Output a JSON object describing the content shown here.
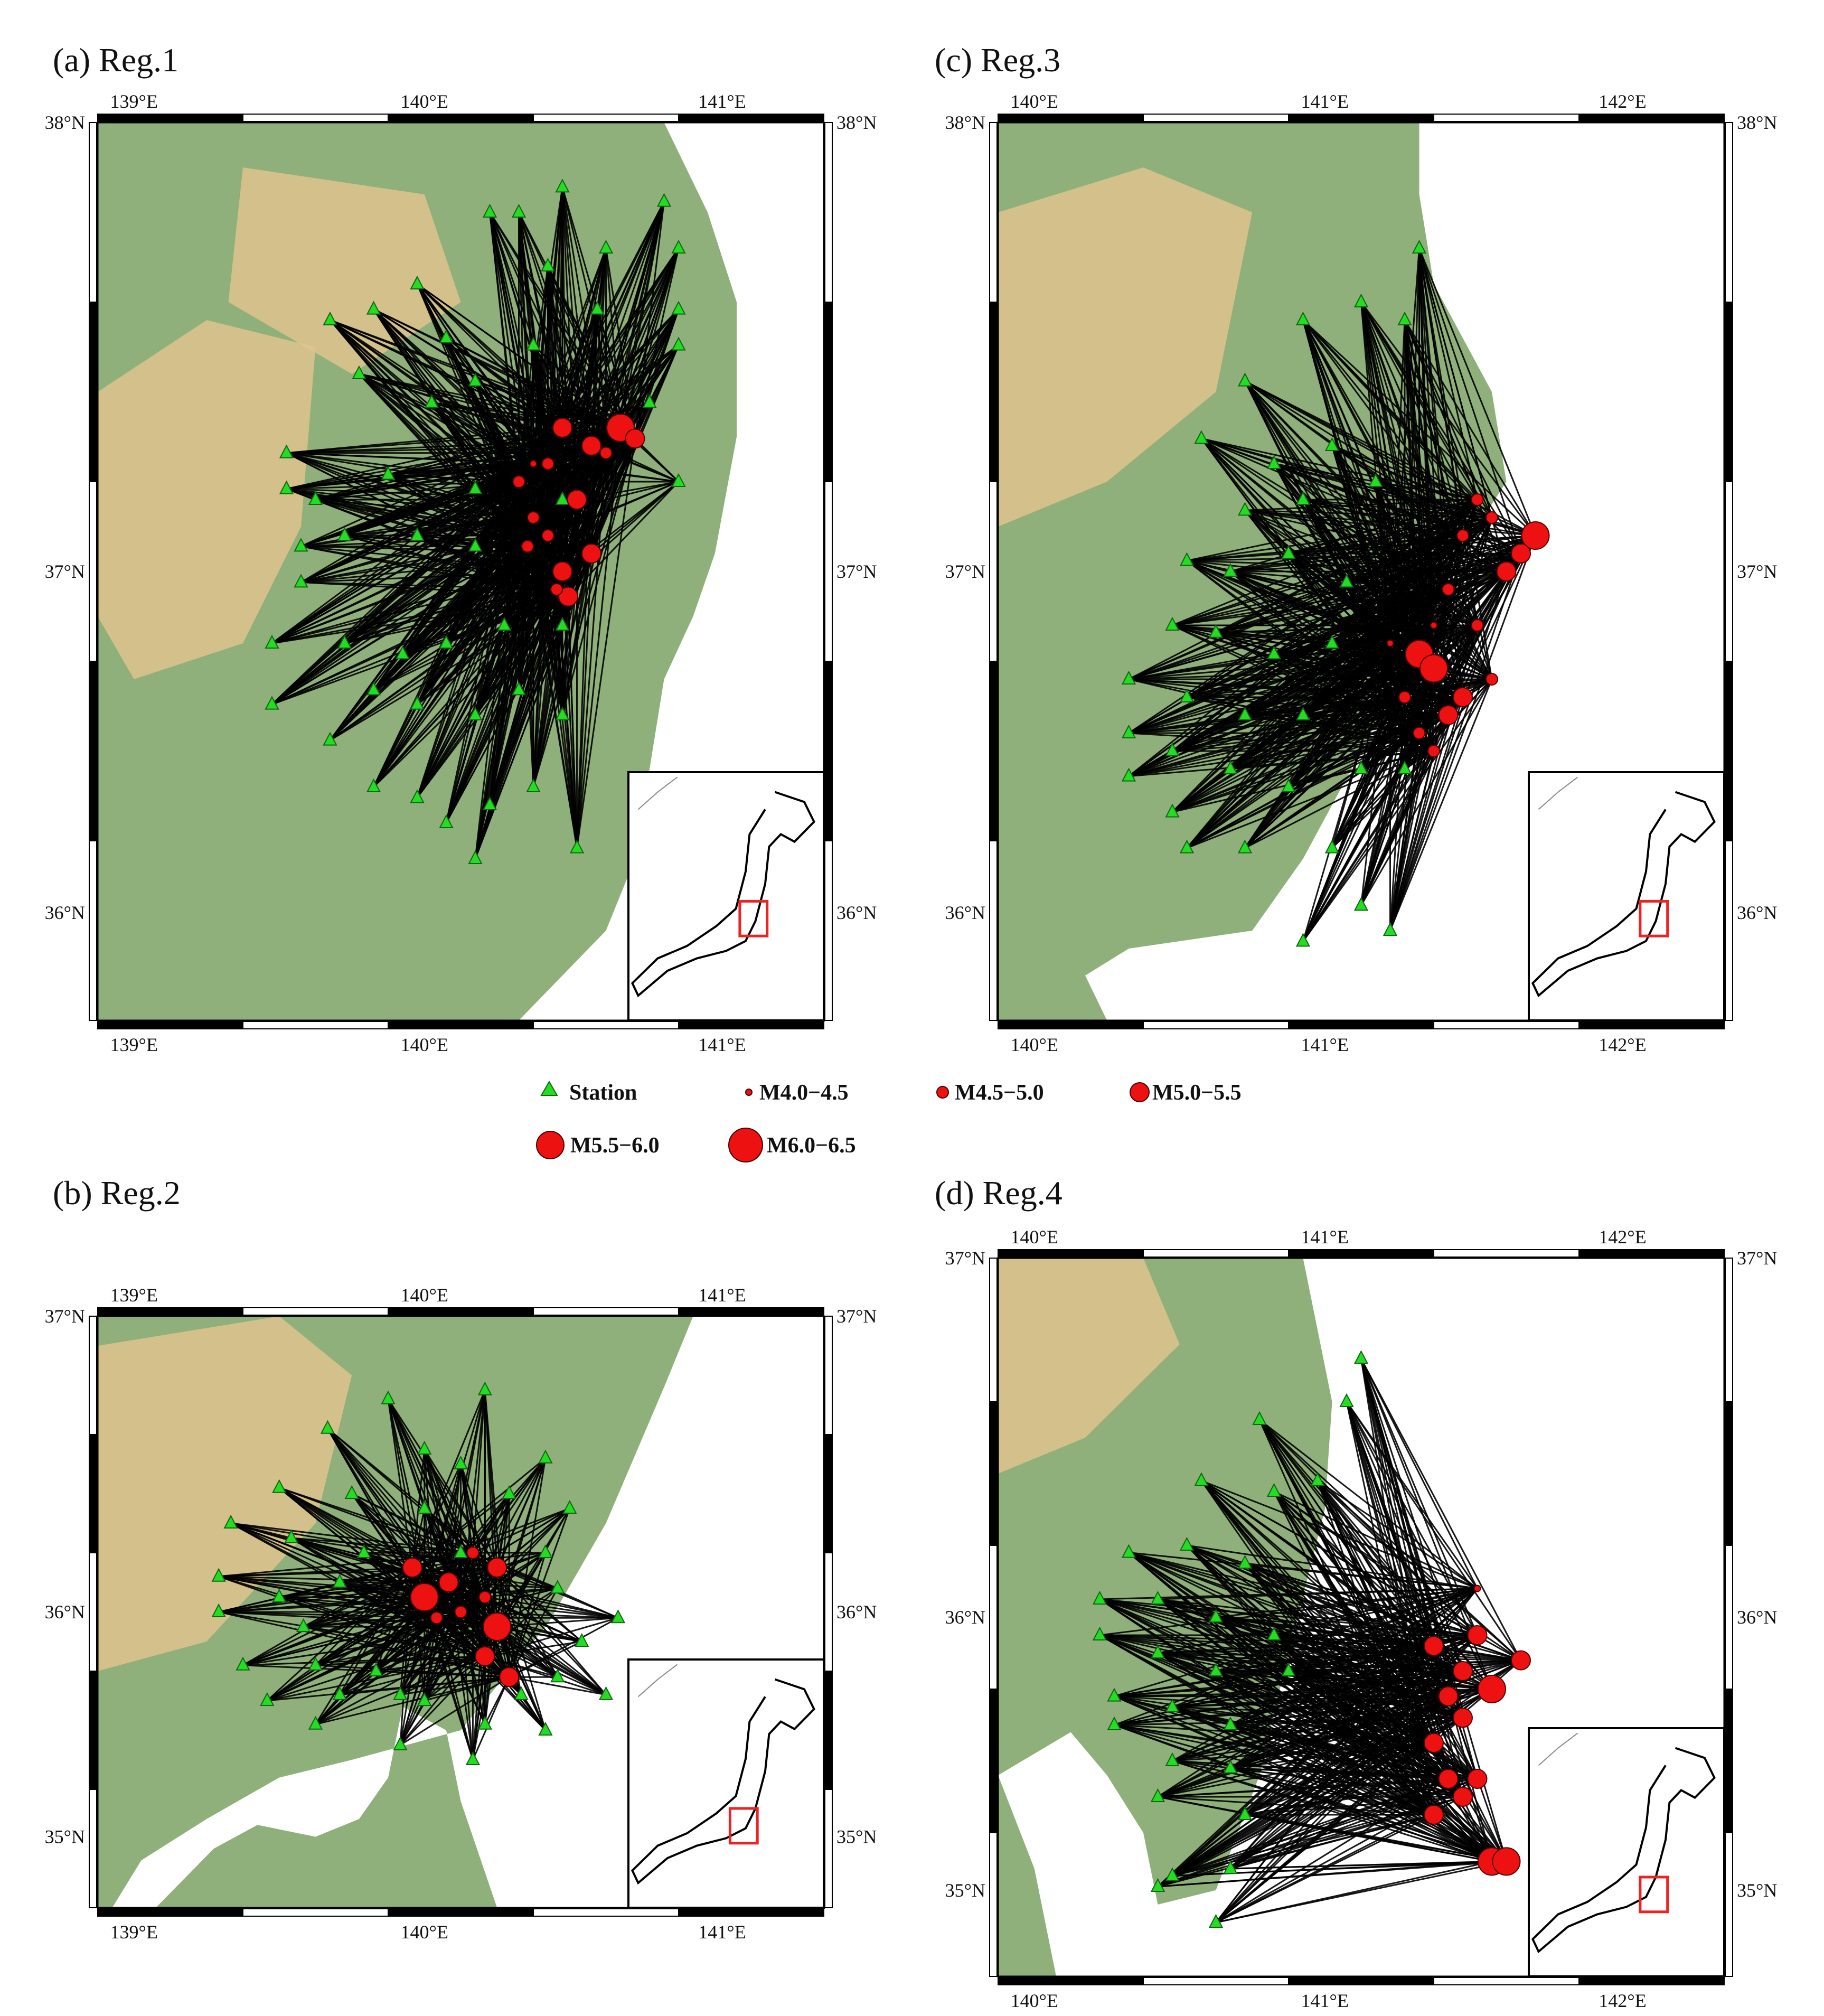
{
  "colors": {
    "land_low": "#8fb07a",
    "land_mid": "#b9c98f",
    "land_high": "#e3c48e",
    "sea": "#ffffff",
    "station": "#22dd22",
    "event": "#ee1111",
    "ray": "#000000",
    "inset_box": "#ee2222"
  },
  "legend": {
    "station": "Station",
    "mags": [
      "M4.0−4.5",
      "M4.5−5.0",
      "M5.0−5.5",
      "M5.5−6.0",
      "M6.0−6.5"
    ]
  },
  "panels": [
    {
      "id": "a",
      "label": "(a)  Reg.1",
      "lon_range": [
        139.0,
        141.5
      ],
      "lat_range": [
        35.5,
        38.0
      ],
      "lon_ticks": [
        "139°E",
        "140°E",
        "141°E"
      ],
      "lat_ticks": [
        "38°N",
        "37°N",
        "36°N"
      ],
      "inset": {
        "box_lon": [
          139.0,
          141.5
        ],
        "box_lat": [
          35.5,
          38.0
        ]
      },
      "stations": [
        [
          139.8,
          37.45
        ],
        [
          139.95,
          37.48
        ],
        [
          140.1,
          37.55
        ],
        [
          139.9,
          37.3
        ],
        [
          140.2,
          37.4
        ],
        [
          140.35,
          37.75
        ],
        [
          140.45,
          37.75
        ],
        [
          140.6,
          37.82
        ],
        [
          140.95,
          37.78
        ],
        [
          140.55,
          37.6
        ],
        [
          140.75,
          37.65
        ],
        [
          141.0,
          37.65
        ],
        [
          141.0,
          37.48
        ],
        [
          140.72,
          37.48
        ],
        [
          140.5,
          37.38
        ],
        [
          140.3,
          37.28
        ],
        [
          140.15,
          37.22
        ],
        [
          141.0,
          37.38
        ],
        [
          140.9,
          37.22
        ],
        [
          141.0,
          37.0
        ],
        [
          139.65,
          37.08
        ],
        [
          139.65,
          36.98
        ],
        [
          139.75,
          36.95
        ],
        [
          140.0,
          37.02
        ],
        [
          140.3,
          36.98
        ],
        [
          139.7,
          36.82
        ],
        [
          139.7,
          36.72
        ],
        [
          139.85,
          36.85
        ],
        [
          140.1,
          36.85
        ],
        [
          140.3,
          36.82
        ],
        [
          140.6,
          36.95
        ],
        [
          139.6,
          36.55
        ],
        [
          139.85,
          36.55
        ],
        [
          140.05,
          36.52
        ],
        [
          140.2,
          36.55
        ],
        [
          140.4,
          36.6
        ],
        [
          140.6,
          36.6
        ],
        [
          139.6,
          36.38
        ],
        [
          139.8,
          36.28
        ],
        [
          139.95,
          36.42
        ],
        [
          140.1,
          36.38
        ],
        [
          140.3,
          36.35
        ],
        [
          140.45,
          36.42
        ],
        [
          140.6,
          36.35
        ],
        [
          139.95,
          36.15
        ],
        [
          140.1,
          36.12
        ],
        [
          140.2,
          36.05
        ],
        [
          140.35,
          36.1
        ],
        [
          140.5,
          36.15
        ],
        [
          140.3,
          35.95
        ],
        [
          140.65,
          35.98
        ]
      ],
      "events": [
        [
          140.6,
          37.15,
          3
        ],
        [
          140.7,
          37.1,
          3
        ],
        [
          140.55,
          37.05,
          2
        ],
        [
          140.45,
          37.0,
          2
        ],
        [
          140.65,
          36.95,
          3
        ],
        [
          140.5,
          36.9,
          2
        ],
        [
          140.55,
          36.85,
          2
        ],
        [
          140.6,
          36.75,
          3
        ],
        [
          140.7,
          36.8,
          3
        ],
        [
          140.62,
          36.68,
          3
        ],
        [
          140.58,
          36.7,
          2
        ],
        [
          140.8,
          37.15,
          4
        ],
        [
          140.85,
          37.12,
          3
        ],
        [
          140.75,
          37.08,
          2
        ],
        [
          140.5,
          37.05,
          1
        ],
        [
          140.48,
          36.82,
          2
        ]
      ]
    },
    {
      "id": "c",
      "label": "(c) Reg.3",
      "lon_range": [
        139.5,
        142.0
      ],
      "lat_range": [
        35.5,
        38.0
      ],
      "lon_ticks": [
        "140°E",
        "141°E",
        "142°E"
      ],
      "lat_ticks": [
        "38°N",
        "37°N",
        "36°N"
      ],
      "inset": {
        "box_lon": [
          139.5,
          142.0
        ],
        "box_lat": [
          35.5,
          38.0
        ]
      },
      "stations": [
        [
          140.95,
          37.65
        ],
        [
          140.75,
          37.5
        ],
        [
          140.55,
          37.45
        ],
        [
          140.35,
          37.28
        ],
        [
          140.9,
          37.45
        ],
        [
          140.2,
          37.12
        ],
        [
          140.45,
          37.05
        ],
        [
          140.65,
          37.1
        ],
        [
          140.8,
          37.0
        ],
        [
          140.35,
          36.92
        ],
        [
          140.55,
          36.95
        ],
        [
          140.15,
          36.78
        ],
        [
          140.3,
          36.75
        ],
        [
          140.5,
          36.8
        ],
        [
          140.7,
          36.72
        ],
        [
          140.1,
          36.6
        ],
        [
          140.25,
          36.58
        ],
        [
          140.45,
          36.52
        ],
        [
          140.65,
          36.55
        ],
        [
          139.95,
          36.45
        ],
        [
          140.15,
          36.4
        ],
        [
          140.35,
          36.35
        ],
        [
          140.55,
          36.35
        ],
        [
          139.95,
          36.3
        ],
        [
          140.1,
          36.25
        ],
        [
          140.3,
          36.2
        ],
        [
          140.5,
          36.15
        ],
        [
          139.95,
          36.18
        ],
        [
          140.1,
          36.08
        ],
        [
          140.35,
          35.98
        ],
        [
          140.65,
          35.98
        ],
        [
          140.55,
          35.72
        ],
        [
          140.75,
          35.82
        ],
        [
          140.85,
          35.75
        ],
        [
          140.15,
          35.98
        ],
        [
          140.75,
          36.2
        ],
        [
          140.9,
          36.2
        ]
      ],
      "events": [
        [
          141.35,
          36.85,
          4
        ],
        [
          141.3,
          36.8,
          3
        ],
        [
          141.25,
          36.75,
          3
        ],
        [
          141.2,
          36.9,
          2
        ],
        [
          141.15,
          36.95,
          2
        ],
        [
          141.1,
          36.85,
          2
        ],
        [
          141.05,
          36.7,
          2
        ],
        [
          140.95,
          36.52,
          4
        ],
        [
          141.0,
          36.48,
          4
        ],
        [
          141.1,
          36.4,
          3
        ],
        [
          141.05,
          36.35,
          3
        ],
        [
          140.95,
          36.3,
          2
        ],
        [
          141.0,
          36.25,
          2
        ],
        [
          140.9,
          36.4,
          2
        ],
        [
          141.2,
          36.45,
          2
        ],
        [
          141.15,
          36.6,
          2
        ],
        [
          141.0,
          36.6,
          1
        ],
        [
          140.85,
          36.55,
          1
        ]
      ]
    },
    {
      "id": "b",
      "label": "(b) Reg.2",
      "lon_range": [
        138.5,
        141.5
      ],
      "lat_range": [
        35.0,
        37.0
      ],
      "lon_ticks": [
        "139°E",
        "140°E",
        "141°E"
      ],
      "lat_ticks": [
        "37°N",
        "36°N",
        "35°N"
      ],
      "inset": {
        "box_lon": [
          138.5,
          141.5
        ],
        "box_lat": [
          35.0,
          37.0
        ]
      },
      "stations": [
        [
          139.7,
          36.72
        ],
        [
          140.1,
          36.75
        ],
        [
          139.45,
          36.62
        ],
        [
          139.85,
          36.55
        ],
        [
          140.0,
          36.5
        ],
        [
          140.35,
          36.52
        ],
        [
          139.25,
          36.42
        ],
        [
          139.55,
          36.4
        ],
        [
          139.85,
          36.35
        ],
        [
          140.2,
          36.4
        ],
        [
          140.45,
          36.35
        ],
        [
          139.05,
          36.3
        ],
        [
          139.3,
          36.25
        ],
        [
          139.6,
          36.2
        ],
        [
          140.0,
          36.2
        ],
        [
          140.35,
          36.2
        ],
        [
          139.0,
          36.12
        ],
        [
          139.25,
          36.05
        ],
        [
          139.5,
          36.1
        ],
        [
          140.4,
          36.08
        ],
        [
          140.65,
          35.98
        ],
        [
          139.0,
          36.0
        ],
        [
          139.35,
          35.95
        ],
        [
          140.5,
          35.9
        ],
        [
          139.1,
          35.82
        ],
        [
          139.4,
          35.82
        ],
        [
          139.65,
          35.8
        ],
        [
          140.4,
          35.78
        ],
        [
          139.2,
          35.7
        ],
        [
          139.5,
          35.72
        ],
        [
          139.75,
          35.72
        ],
        [
          139.85,
          35.7
        ],
        [
          140.25,
          35.72
        ],
        [
          140.6,
          35.72
        ],
        [
          139.4,
          35.62
        ],
        [
          139.75,
          35.55
        ],
        [
          140.1,
          35.62
        ],
        [
          140.35,
          35.6
        ],
        [
          140.05,
          35.5
        ]
      ],
      "events": [
        [
          139.85,
          36.05,
          4
        ],
        [
          139.8,
          36.15,
          3
        ],
        [
          139.95,
          36.1,
          3
        ],
        [
          140.05,
          36.2,
          2
        ],
        [
          140.15,
          36.15,
          3
        ],
        [
          140.1,
          36.05,
          2
        ],
        [
          140.15,
          35.95,
          4
        ],
        [
          140.1,
          35.85,
          3
        ],
        [
          140.2,
          35.78,
          3
        ],
        [
          139.9,
          35.98,
          2
        ],
        [
          140.0,
          36.0,
          2
        ]
      ]
    },
    {
      "id": "d",
      "label": "(d) Reg.4",
      "lon_range": [
        139.5,
        142.0
      ],
      "lat_range": [
        35.0,
        37.0
      ],
      "lon_ticks": [
        "140°E",
        "141°E",
        "142°E"
      ],
      "lat_ticks": [
        "37°N",
        "36°N",
        "35°N"
      ],
      "inset": {
        "box_lon": [
          139.5,
          142.0
        ],
        "box_lat": [
          35.0,
          37.0
        ]
      },
      "stations": [
        [
          140.75,
          36.72
        ],
        [
          140.4,
          36.55
        ],
        [
          140.7,
          36.6
        ],
        [
          140.2,
          36.38
        ],
        [
          140.45,
          36.35
        ],
        [
          140.6,
          36.38
        ],
        [
          139.95,
          36.18
        ],
        [
          140.15,
          36.2
        ],
        [
          140.35,
          36.15
        ],
        [
          139.85,
          36.05
        ],
        [
          140.05,
          36.05
        ],
        [
          140.25,
          36.0
        ],
        [
          140.45,
          35.95
        ],
        [
          139.85,
          35.95
        ],
        [
          140.05,
          35.9
        ],
        [
          140.25,
          35.85
        ],
        [
          140.5,
          35.85
        ],
        [
          139.9,
          35.78
        ],
        [
          140.1,
          35.75
        ],
        [
          140.3,
          35.7
        ],
        [
          139.9,
          35.7
        ],
        [
          140.1,
          35.6
        ],
        [
          140.3,
          35.58
        ],
        [
          140.05,
          35.5
        ],
        [
          140.35,
          35.45
        ],
        [
          140.1,
          35.28
        ],
        [
          140.3,
          35.3
        ],
        [
          140.25,
          35.15
        ],
        [
          140.05,
          35.25
        ]
      ],
      "events": [
        [
          141.0,
          35.92,
          3
        ],
        [
          141.15,
          35.95,
          3
        ],
        [
          141.3,
          35.88,
          3
        ],
        [
          141.1,
          35.85,
          3
        ],
        [
          141.05,
          35.78,
          3
        ],
        [
          141.1,
          35.72,
          3
        ],
        [
          141.0,
          35.65,
          3
        ],
        [
          141.05,
          35.55,
          3
        ],
        [
          141.15,
          35.55,
          3
        ],
        [
          141.0,
          35.45,
          3
        ],
        [
          141.1,
          35.5,
          3
        ],
        [
          141.2,
          35.32,
          4
        ],
        [
          141.25,
          35.32,
          4
        ],
        [
          141.2,
          35.8,
          4
        ],
        [
          141.15,
          36.08,
          1
        ]
      ]
    }
  ]
}
